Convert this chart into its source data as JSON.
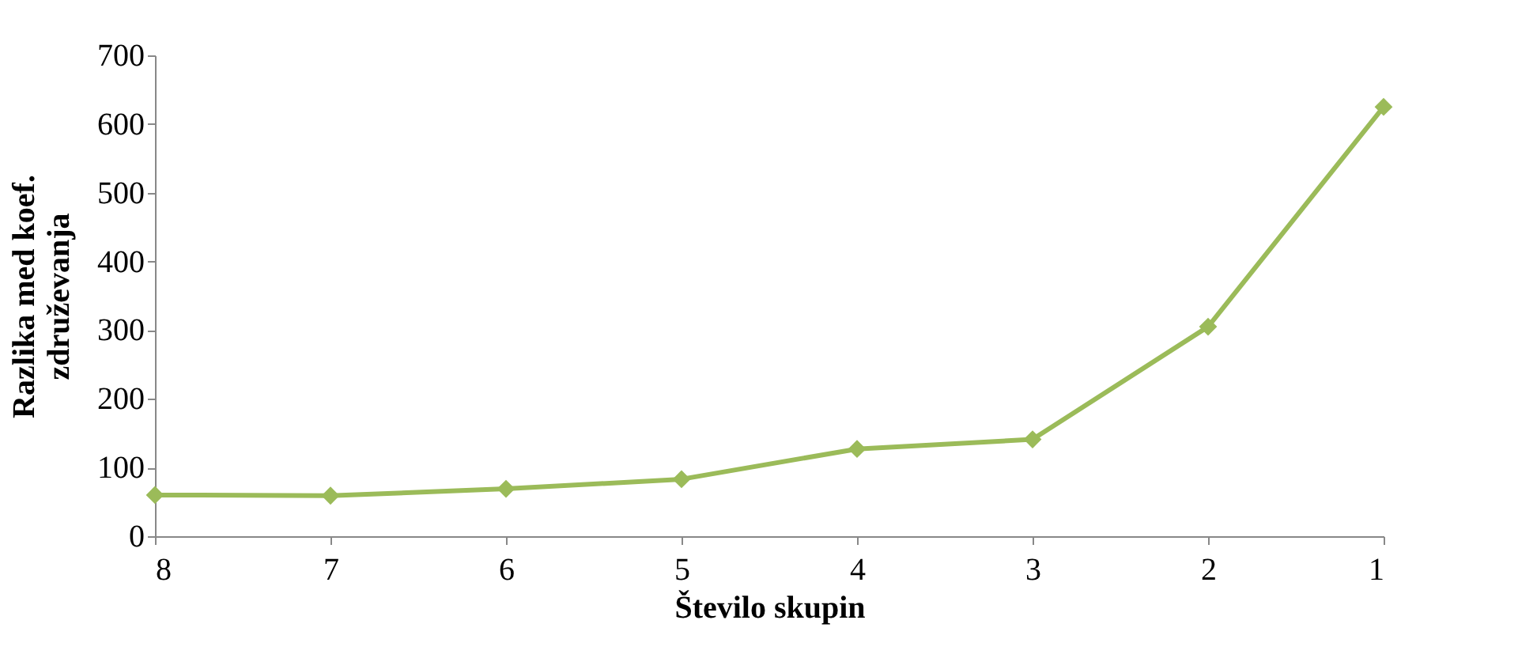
{
  "chart_data": {
    "type": "line",
    "xlabel": "Število skupin",
    "ylabel": "Razlika med koef. združevanja",
    "categories": [
      "8",
      "7",
      "6",
      "5",
      "4",
      "3",
      "2",
      "1"
    ],
    "series": [
      {
        "color": "#9bbb59",
        "values": [
          60,
          59,
          69,
          83,
          127,
          141,
          305,
          625
        ]
      }
    ],
    "ylim": [
      0,
      700
    ],
    "yticks": [
      0,
      100,
      200,
      300,
      400,
      500,
      600,
      700
    ],
    "grid": false,
    "legend": false,
    "marker": "diamond",
    "line_style": "solid"
  }
}
